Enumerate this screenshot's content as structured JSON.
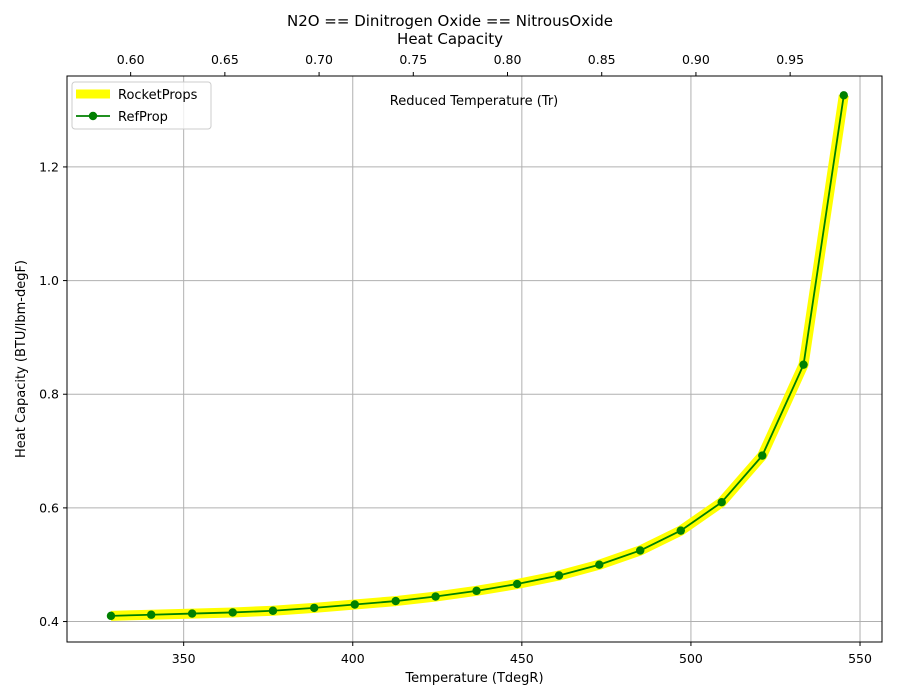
{
  "chart_data": {
    "type": "line",
    "title": "N2O == Dinitrogen Oxide == NitrousOxide",
    "subtitle": "Heat Capacity",
    "xlabel": "Temperature (TdegR)",
    "ylabel": "Heat Capacity (BTU/lbm-degF)",
    "annotation": "Reduced Temperature (Tr)",
    "xlim": [
      315.5,
      556.5
    ],
    "ylim": [
      0.364,
      1.36
    ],
    "x_ticks": [
      350,
      400,
      450,
      500,
      550
    ],
    "y_ticks": [
      0.4,
      0.6,
      0.8,
      1.0,
      1.2
    ],
    "x_tick_labels": [
      "350",
      "400",
      "450",
      "500",
      "550"
    ],
    "y_tick_labels": [
      "0.4",
      "0.6",
      "0.8",
      "1.0",
      "1.2"
    ],
    "top_axis": {
      "critical_temperature": 557.2,
      "ticks": [
        0.6,
        0.65,
        0.7,
        0.75,
        0.8,
        0.85,
        0.9,
        0.95
      ],
      "tick_labels": [
        "0.60",
        "0.65",
        "0.70",
        "0.75",
        "0.80",
        "0.85",
        "0.90",
        "0.95"
      ]
    },
    "grid": true,
    "legend_position": "top-left",
    "series": [
      {
        "name": "RocketProps",
        "color": "#ffff00",
        "style": "thick-line",
        "x": [
          328.5,
          340.4,
          352.5,
          364.5,
          376.4,
          388.6,
          400.6,
          412.7,
          424.5,
          436.6,
          448.6,
          461.0,
          472.9,
          485.0,
          497.0,
          509.1,
          521.1,
          533.3,
          545.2
        ],
        "y": [
          0.41,
          0.412,
          0.414,
          0.416,
          0.419,
          0.424,
          0.43,
          0.436,
          0.444,
          0.454,
          0.466,
          0.481,
          0.5,
          0.525,
          0.56,
          0.61,
          0.692,
          0.852,
          1.326
        ]
      },
      {
        "name": "RefProp",
        "color": "#008000",
        "style": "line-markers",
        "x": [
          328.5,
          340.4,
          352.5,
          364.5,
          376.4,
          388.6,
          400.6,
          412.7,
          424.5,
          436.6,
          448.6,
          461.0,
          472.9,
          485.0,
          497.0,
          509.1,
          521.1,
          533.3,
          545.2
        ],
        "y": [
          0.41,
          0.412,
          0.414,
          0.416,
          0.419,
          0.424,
          0.43,
          0.436,
          0.444,
          0.454,
          0.466,
          0.481,
          0.5,
          0.525,
          0.56,
          0.61,
          0.692,
          0.852,
          1.326
        ]
      }
    ]
  }
}
